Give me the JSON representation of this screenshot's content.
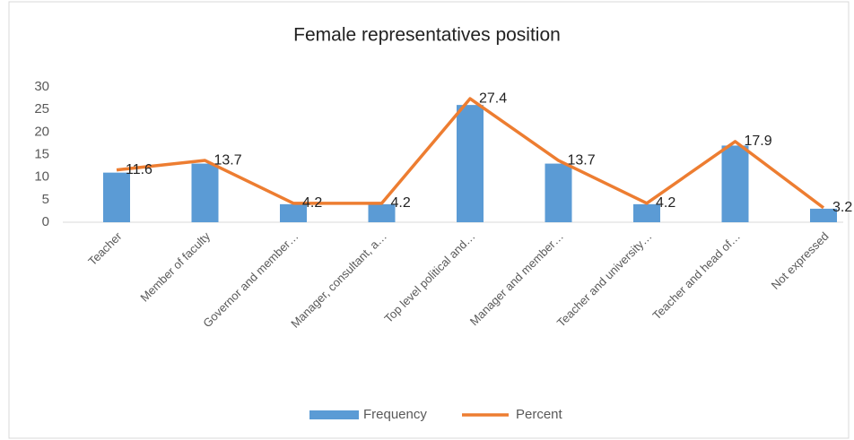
{
  "chart_data": {
    "type": "bar",
    "title": "Female representatives position",
    "categories": [
      "Teacher",
      "Member of faculty",
      "Governor and member…",
      "Manager, consultant, a…",
      "Top level political and…",
      "Manager and member…",
      "Teacher and university…",
      "Teacher and head of…",
      "Not expressed"
    ],
    "series": [
      {
        "name": "Frequency",
        "type": "bar",
        "color": "#5b9bd5",
        "values": [
          11,
          13,
          4,
          4,
          26,
          13,
          4,
          17,
          3
        ]
      },
      {
        "name": "Percent",
        "type": "line",
        "color": "#ed7d31",
        "values": [
          11.6,
          13.7,
          4.2,
          4.2,
          27.4,
          13.7,
          4.2,
          17.9,
          3.2
        ]
      }
    ],
    "ylim": [
      0,
      30
    ],
    "yticks": [
      0,
      5,
      10,
      15,
      20,
      25,
      30
    ],
    "grid": false,
    "legend": "bottom"
  }
}
